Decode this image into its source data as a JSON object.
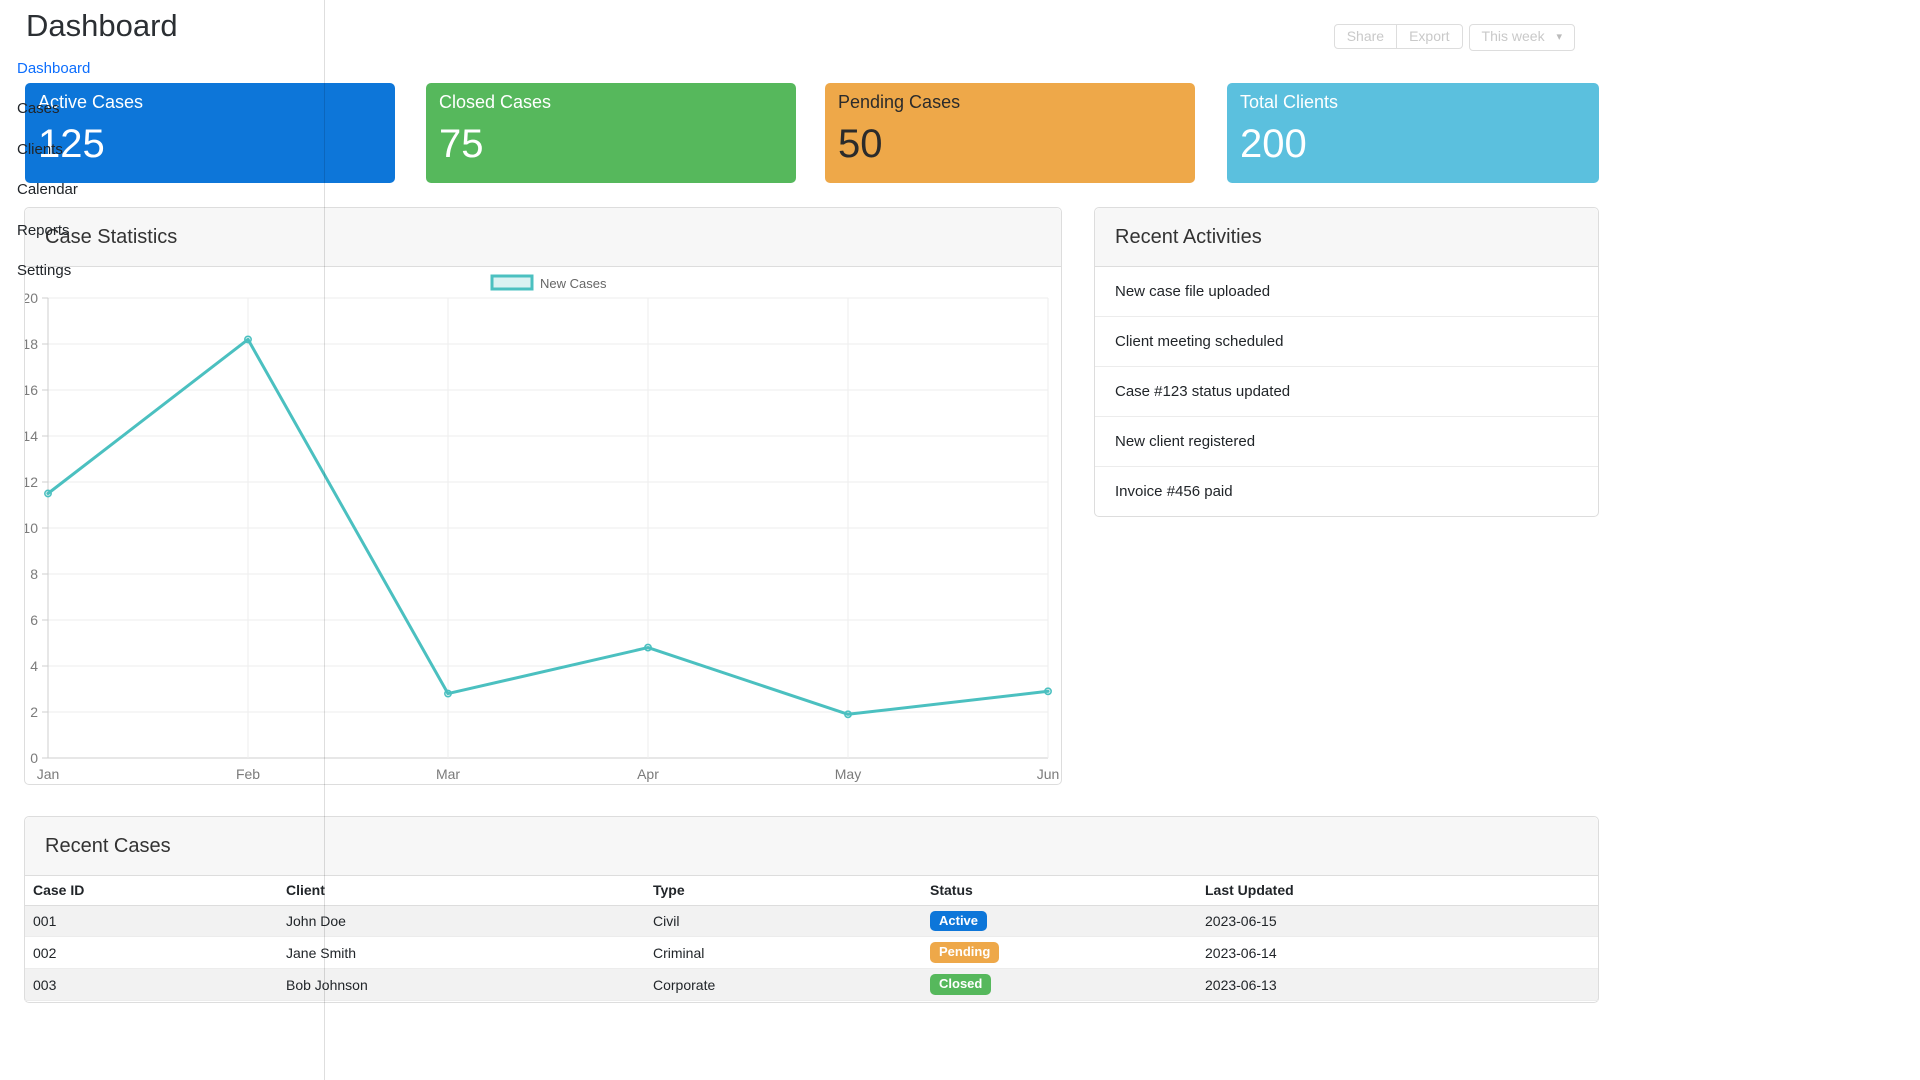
{
  "header": {
    "title": "Dashboard"
  },
  "breadcrumb": {
    "label": "Dashboard"
  },
  "sidebar": {
    "items": [
      "Cases",
      "Clients",
      "Calendar",
      "Reports",
      "Settings"
    ]
  },
  "toolbar": {
    "share_label": "Share",
    "export_label": "Export",
    "range_label": "This week",
    "caret_icon": "▾"
  },
  "stat_cards": [
    {
      "title": "Active Cases",
      "value": "125",
      "bg": "#0d76d9",
      "fg": "#ffffff"
    },
    {
      "title": "Closed Cases",
      "value": "75",
      "bg": "#56b85c",
      "fg": "#ffffff"
    },
    {
      "title": "Pending Cases",
      "value": "50",
      "bg": "#eea849",
      "fg": "#2b2b2b"
    },
    {
      "title": "Total Clients",
      "value": "200",
      "bg": "#5bc0de",
      "fg": "#ffffff"
    }
  ],
  "chart_panel": {
    "title": "Case Statistics"
  },
  "chart_data": {
    "type": "line",
    "title": "Case Statistics",
    "categories": [
      "Jan",
      "Feb",
      "Mar",
      "Apr",
      "May",
      "Jun"
    ],
    "series": [
      {
        "name": "New Cases",
        "values": [
          11.5,
          18.2,
          2.8,
          4.8,
          1.9,
          2.9
        ],
        "line_color": "#4bc0c0",
        "fill_color": "rgba(75,192,192,0.2)"
      }
    ],
    "ylim": [
      0,
      20
    ],
    "ytick_step": 2,
    "grid": true,
    "legend_position": "top-center",
    "xlabel": "",
    "ylabel": ""
  },
  "activities": {
    "title": "Recent Activities",
    "items": [
      "New case file uploaded",
      "Client meeting scheduled",
      "Case #123 status updated",
      "New client registered",
      "Invoice #456 paid"
    ]
  },
  "recent_cases": {
    "title": "Recent Cases",
    "columns": [
      "Case ID",
      "Client",
      "Type",
      "Status",
      "Last Updated"
    ],
    "rows": [
      {
        "case_id": "001",
        "client": "John Doe",
        "type": "Civil",
        "status": "Active",
        "status_color": "#0d76d9",
        "last_updated": "2023-06-15"
      },
      {
        "case_id": "002",
        "client": "Jane Smith",
        "type": "Criminal",
        "status": "Pending",
        "status_color": "#eea849",
        "last_updated": "2023-06-14"
      },
      {
        "case_id": "003",
        "client": "Bob Johnson",
        "type": "Corporate",
        "status": "Closed",
        "status_color": "#56b85c",
        "last_updated": "2023-06-13"
      }
    ]
  },
  "colors": {
    "accent_teal": "#4bc0c0",
    "link_blue": "#0d6efd",
    "divider": "rgba(0,0,0,0.13)"
  }
}
